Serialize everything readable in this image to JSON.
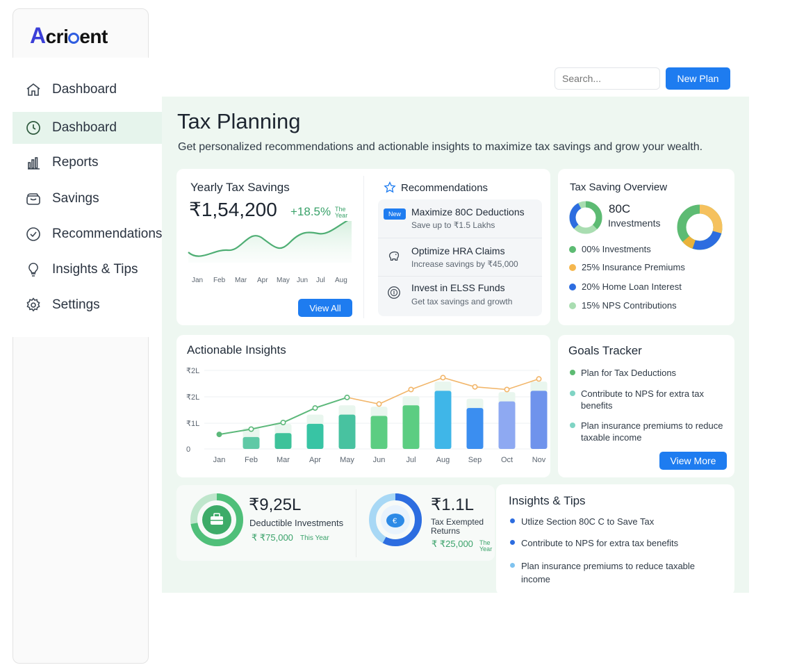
{
  "brand": {
    "logo_text_a": "A",
    "logo_text_1": "cri",
    "logo_text_2": "ent"
  },
  "sidebar": {
    "items": [
      {
        "label": "Dashboard",
        "icon": "home-icon"
      },
      {
        "label": "Dashboard",
        "icon": "clock-icon"
      },
      {
        "label": "Reports",
        "icon": "bar-chart-icon"
      },
      {
        "label": "Savings",
        "icon": "wallet-icon"
      },
      {
        "label": "Recommendations",
        "icon": "check-circle-icon"
      },
      {
        "label": "Insights & Tips",
        "icon": "lightbulb-icon"
      },
      {
        "label": "Settings",
        "icon": "gear-icon"
      }
    ],
    "active_index": 1
  },
  "header": {
    "search_placeholder": "Search...",
    "new_plan_label": "New Plan"
  },
  "page": {
    "title": "Tax Planning",
    "subtitle": "Get personalized recommendations and actionable insights to maximize tax savings and grow your wealth."
  },
  "yearly": {
    "title": "Yearly Tax Savings",
    "amount": "₹1,54,200",
    "change": "+18.5%",
    "change_note_1": "The",
    "change_note_2": "Year",
    "months": [
      "Jan",
      "Feb",
      "Mar",
      "Apr",
      "May",
      "Jun",
      "Jul",
      "Aug"
    ],
    "view_all_label": "View All"
  },
  "recommendations": {
    "title": "Recommendations",
    "badge": "New",
    "items": [
      {
        "title": "Maximize 80C Deductions",
        "subtitle": "Save up to ₹1.5 Lakhs"
      },
      {
        "title": "Optimize HRA Claims",
        "subtitle": "Increase savings by ₹45,000"
      },
      {
        "title": "Invest in ELSS Funds",
        "subtitle": "Get tax savings and growth"
      }
    ]
  },
  "overview": {
    "title": "Tax Saving Overview",
    "center_title": "80C",
    "center_sub": "Investments",
    "legend": [
      {
        "pct": "00%",
        "label": "Investments",
        "color": "#5dbb73"
      },
      {
        "pct": "25%",
        "label": "Insurance Premiums",
        "color": "#f5b74e"
      },
      {
        "pct": "20%",
        "label": "Home Loan Interest",
        "color": "#2d6de0"
      },
      {
        "pct": "15%",
        "label": "NPS Contributions",
        "color": "#a9ddb1"
      }
    ]
  },
  "chart_data": {
    "type": "bar",
    "title": "Actionable Insights",
    "categories": [
      "Jan",
      "Feb",
      "Mar",
      "Apr",
      "May",
      "Jun",
      "Jul",
      "Aug",
      "Sep",
      "Oct",
      "Nov"
    ],
    "y_tick_labels": [
      "₹2L",
      "₹2L",
      "₹1L",
      "0"
    ],
    "bar_values": [
      0,
      0.45,
      0.6,
      0.95,
      1.3,
      1.25,
      1.65,
      2.2,
      1.55,
      1.8,
      2.2
    ],
    "bar_colors": [
      "#5fc9a6",
      "#5fc9a6",
      "#3ec29a",
      "#38c4a4",
      "#48c2a0",
      "#5ccd82",
      "#5ccd82",
      "#3fb6e8",
      "#3b8ef0",
      "#8ea9f2",
      "#6f93ec"
    ],
    "line_values": [
      0.55,
      0.75,
      1.0,
      1.55,
      1.95,
      1.7,
      2.25,
      2.7,
      2.35,
      2.25,
      2.65
    ],
    "line_colors": [
      "#5cb87a",
      "#f2b66a"
    ],
    "ylim": [
      0,
      3.0
    ]
  },
  "goals": {
    "title": "Goals Tracker",
    "items": [
      {
        "text": "Plan for Tax Deductions",
        "color": "#5dbb73"
      },
      {
        "text": "Contribute to NPS for extra tax benefits",
        "color": "#7fd4c4"
      },
      {
        "text": "Plan insurance premiums to reduce taxable income",
        "color": "#7fd4c4"
      }
    ],
    "view_more_label": "View More"
  },
  "stats": {
    "deductible": {
      "value": "₹9,25L",
      "label": "Deductible Investments",
      "sub": "₹ ₹75,000",
      "note": "This Year"
    },
    "exempted": {
      "value": "₹1.1L",
      "label_1": "Tax Exempted",
      "label_2": "Returns",
      "sub": "₹ ₹25,000",
      "note_1": "The",
      "note_2": "Year"
    }
  },
  "tips": {
    "title": "Insights & Tips",
    "items": [
      {
        "text": "Utlize Section 80C C to Save Tax",
        "color": "#2d6de0"
      },
      {
        "text": "Contribute to NPS for extra tax benefits",
        "color": "#2d6de0"
      },
      {
        "text": "Plan insurance premiums to reduce taxable income",
        "color": "#7fc3ef"
      }
    ]
  }
}
